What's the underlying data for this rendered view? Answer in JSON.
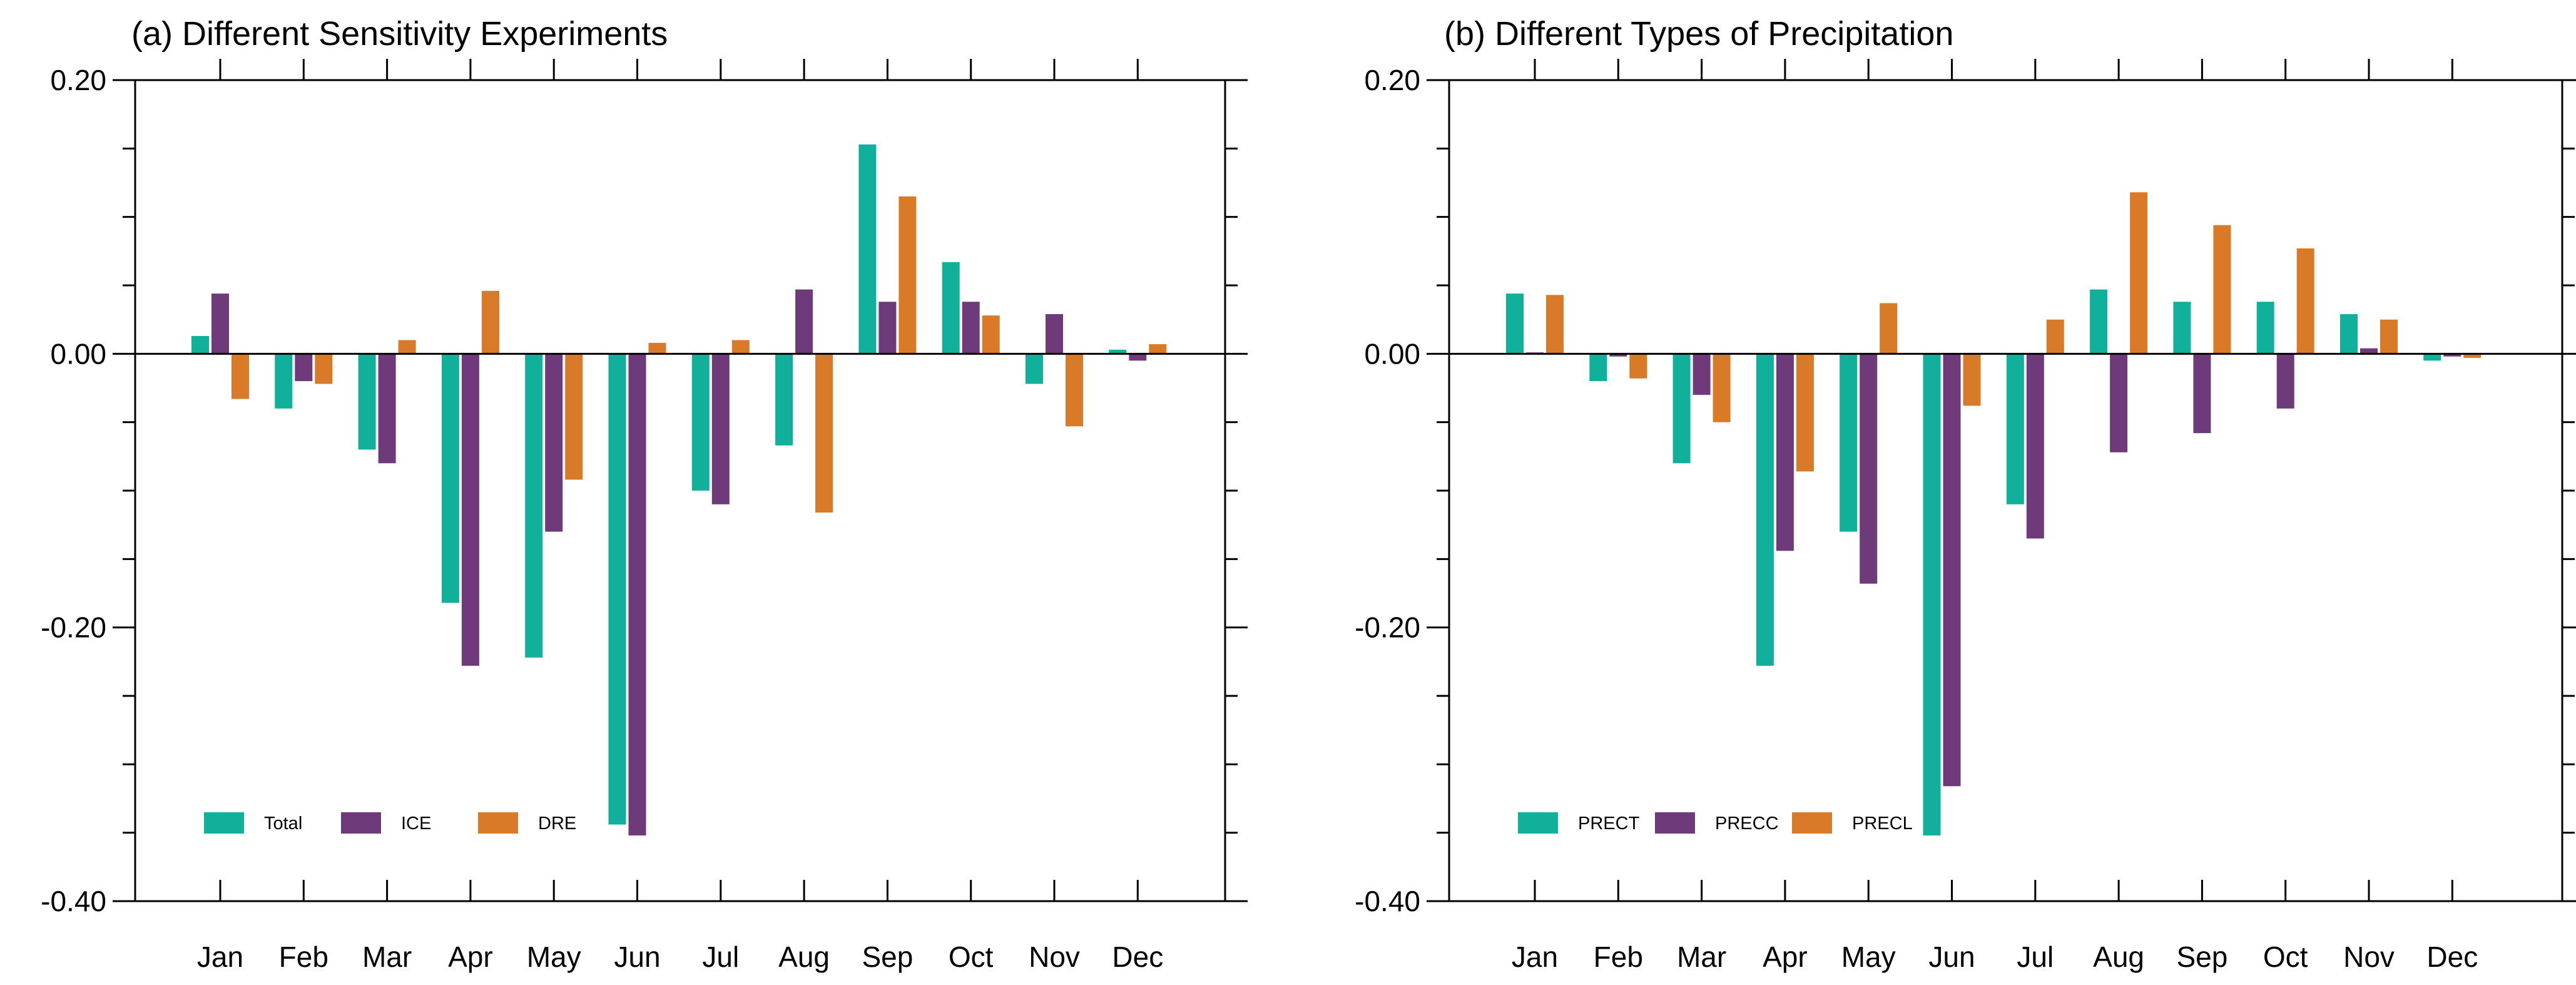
{
  "colors": {
    "series1": "#10b09a",
    "series2": "#6e3a7a",
    "series3": "#d97a28"
  },
  "chart_data": [
    {
      "type": "bar",
      "title": "(a) Different Sensitivity Experiments",
      "xlabel": "",
      "ylabel": "",
      "ylim": [
        -0.4,
        0.2
      ],
      "ytick_labels": [
        "0.20",
        "0.00",
        "-0.20",
        "-0.40"
      ],
      "categories": [
        "Jan",
        "Feb",
        "Mar",
        "Apr",
        "May",
        "Jun",
        "Jul",
        "Aug",
        "Sep",
        "Oct",
        "Nov",
        "Dec"
      ],
      "legend_position": "bottom-left",
      "series": [
        {
          "name": "Total",
          "values": [
            0.013,
            -0.04,
            -0.07,
            -0.182,
            -0.222,
            -0.344,
            -0.1,
            -0.067,
            0.153,
            0.067,
            -0.022,
            0.003
          ]
        },
        {
          "name": "ICE",
          "values": [
            0.044,
            -0.02,
            -0.08,
            -0.228,
            -0.13,
            -0.352,
            -0.11,
            0.047,
            0.038,
            0.038,
            0.029,
            -0.005
          ]
        },
        {
          "name": "DRE",
          "values": [
            -0.033,
            -0.022,
            0.01,
            0.046,
            -0.092,
            0.008,
            0.01,
            -0.116,
            0.115,
            0.028,
            -0.053,
            0.007
          ]
        }
      ]
    },
    {
      "type": "bar",
      "title": "(b) Different Types of Precipitation",
      "xlabel": "",
      "ylabel": "",
      "ylim": [
        -0.4,
        0.2
      ],
      "ytick_labels": [
        "0.20",
        "0.00",
        "-0.20",
        "-0.40"
      ],
      "categories": [
        "Jan",
        "Feb",
        "Mar",
        "Apr",
        "May",
        "Jun",
        "Jul",
        "Aug",
        "Sep",
        "Oct",
        "Nov",
        "Dec"
      ],
      "legend_position": "bottom-left",
      "series": [
        {
          "name": "PRECT",
          "values": [
            0.044,
            -0.02,
            -0.08,
            -0.228,
            -0.13,
            -0.352,
            -0.11,
            0.047,
            0.038,
            0.038,
            0.029,
            -0.005
          ]
        },
        {
          "name": "PRECC",
          "values": [
            0.001,
            -0.002,
            -0.03,
            -0.144,
            -0.168,
            -0.316,
            -0.135,
            -0.072,
            -0.058,
            -0.04,
            0.004,
            -0.002
          ]
        },
        {
          "name": "PRECL",
          "values": [
            0.043,
            -0.018,
            -0.05,
            -0.086,
            0.037,
            -0.038,
            0.025,
            0.118,
            0.094,
            0.077,
            0.025,
            -0.003
          ]
        }
      ]
    }
  ]
}
